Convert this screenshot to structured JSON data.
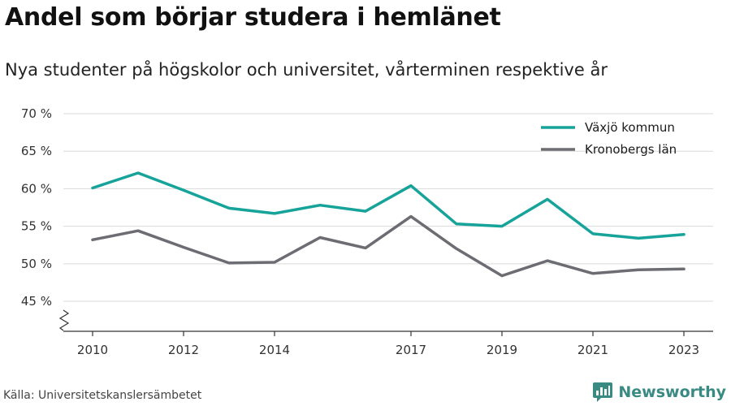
{
  "title": "Andel som börjar studera i hemlänet",
  "subtitle": "Nya studenter på högskolor och universitet, vårterminen respektive år",
  "source": "Källa: Universitetskanslersämbetet",
  "brand": {
    "name": "Newsworthy",
    "icon": "newsworthy-logo-icon",
    "color": "#3a8a84"
  },
  "chart_data": {
    "type": "line",
    "x": [
      2010,
      2011,
      2012,
      2013,
      2014,
      2015,
      2016,
      2017,
      2018,
      2019,
      2020,
      2021,
      2022,
      2023
    ],
    "xticks": [
      2010,
      2012,
      2014,
      2017,
      2019,
      2021,
      2023
    ],
    "xtick_labels": [
      "2010",
      "2012",
      "2014",
      "2017",
      "2019",
      "2021",
      "2023"
    ],
    "ylim": [
      41,
      70
    ],
    "yticks": [
      45,
      50,
      55,
      60,
      65,
      70
    ],
    "ytick_labels": [
      "45 %",
      "50 %",
      "55 %",
      "60 %",
      "65 %",
      "70 %"
    ],
    "y_axis_break": true,
    "grid": true,
    "legend_position": "top-right",
    "series": [
      {
        "name": "Växjö kommun",
        "color": "#16a399",
        "values": [
          60.1,
          62.1,
          59.8,
          57.4,
          56.7,
          57.8,
          57.0,
          60.4,
          55.3,
          55.0,
          58.6,
          54.0,
          53.4,
          53.9
        ]
      },
      {
        "name": "Kronobergs län",
        "color": "#6c6c73",
        "values": [
          53.2,
          54.4,
          52.2,
          50.1,
          50.2,
          53.5,
          52.1,
          56.3,
          52.0,
          48.4,
          50.4,
          48.7,
          49.2,
          49.3
        ]
      }
    ]
  }
}
